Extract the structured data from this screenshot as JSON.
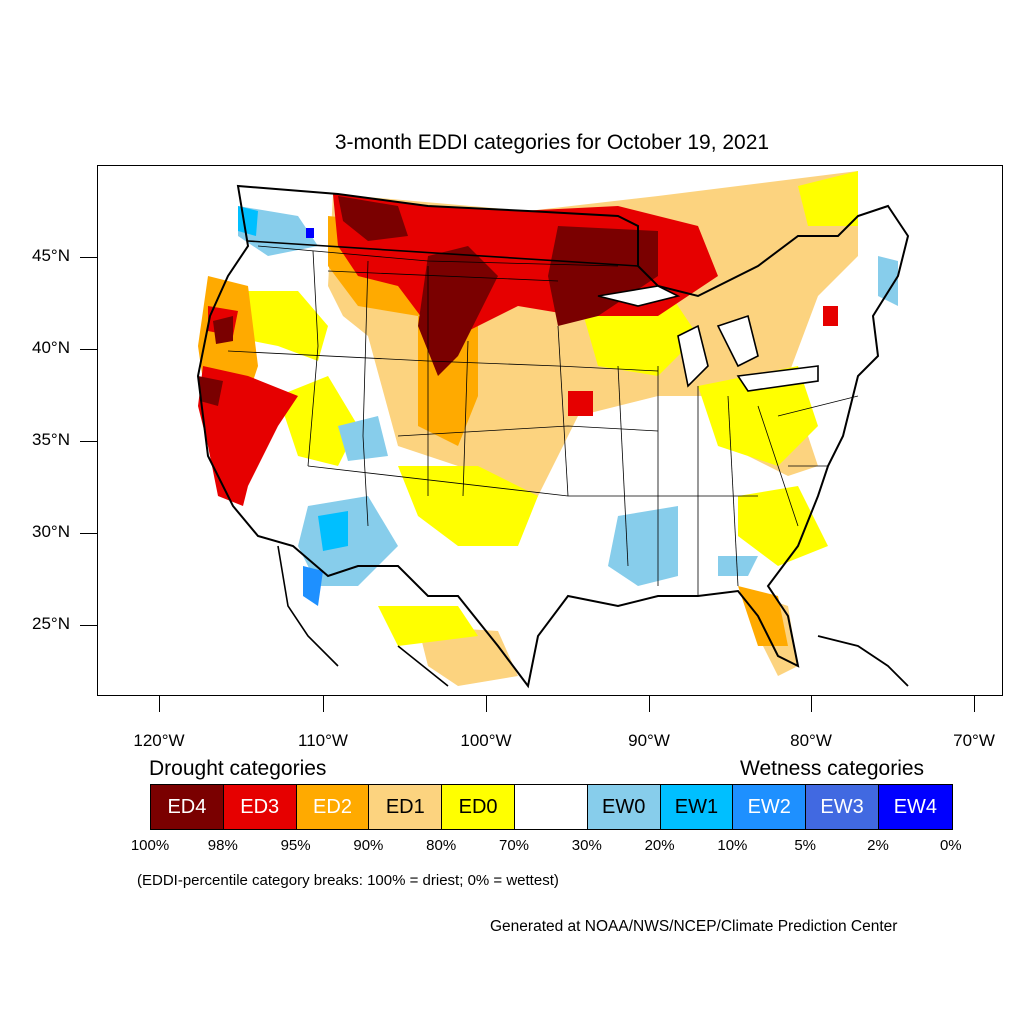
{
  "title": "3-month EDDI categories for October 19, 2021",
  "lat_labels": [
    "45°N",
    "40°N",
    "35°N",
    "30°N",
    "25°N"
  ],
  "lon_labels": [
    "120°W",
    "110°W",
    "100°W",
    "90°W",
    "80°W",
    "70°W"
  ],
  "drought_heading": "Drought categories",
  "wetness_heading": "Wetness categories",
  "categories": [
    {
      "label": "ED4",
      "color": "#7a0000",
      "text_color": "#ffffff"
    },
    {
      "label": "ED3",
      "color": "#e60000",
      "text_color": "#ffffff"
    },
    {
      "label": "ED2",
      "color": "#ffaa00",
      "text_color": "#ffffff"
    },
    {
      "label": "ED1",
      "color": "#fcd37f",
      "text_color": "#000000"
    },
    {
      "label": "ED0",
      "color": "#ffff00",
      "text_color": "#000000"
    },
    {
      "label": "",
      "color": "#ffffff",
      "text_color": "#000000"
    },
    {
      "label": "EW0",
      "color": "#87cdeb",
      "text_color": "#000000"
    },
    {
      "label": "EW1",
      "color": "#00bfff",
      "text_color": "#000000"
    },
    {
      "label": "EW2",
      "color": "#1e90ff",
      "text_color": "#ffffff"
    },
    {
      "label": "EW3",
      "color": "#4169e1",
      "text_color": "#ffffff"
    },
    {
      "label": "EW4",
      "color": "#0000ff",
      "text_color": "#ffffff"
    }
  ],
  "percentiles": [
    "100%",
    "98%",
    "95%",
    "90%",
    "80%",
    "70%",
    "30%",
    "20%",
    "10%",
    "5%",
    "2%",
    "0%"
  ],
  "note": "(EDDI-percentile category breaks: 100% = driest; 0% = wettest)",
  "credit": "Generated at NOAA/NWS/NCEP/Climate Prediction Center"
}
